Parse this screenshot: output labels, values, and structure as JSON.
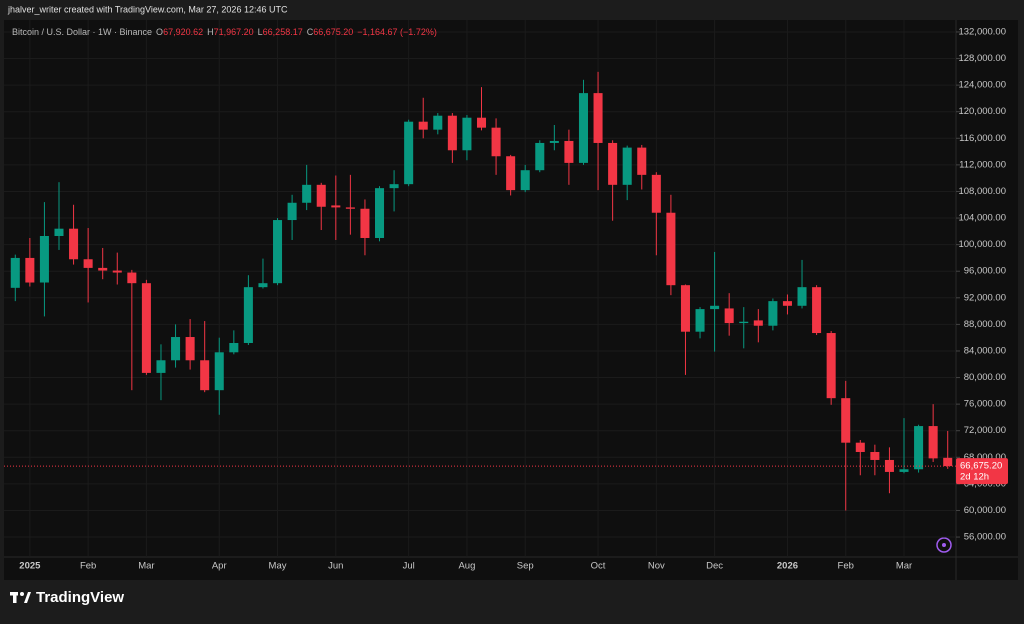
{
  "header": {
    "attribution": "jhalver_writer created with TradingView.com, Mar 27, 2026 12:46 UTC"
  },
  "footer": {
    "brand": "TradingView"
  },
  "chart_data": {
    "type": "candlestick",
    "title": "Bitcoin / U.S. Dollar · 1W · Binance",
    "ohlc_header": [
      {
        "key": "O",
        "text": "67,920.62"
      },
      {
        "key": "H",
        "text": "71,967.20"
      },
      {
        "key": "L",
        "text": "66,258.17"
      },
      {
        "key": "C",
        "text": "66,675.20"
      }
    ],
    "change": "−1,164.67 (−1.72%)",
    "last_price_label": "66,675.20",
    "countdown": "2d 12h",
    "up_color": "#089981",
    "down_color": "#f23645",
    "grid": true,
    "categories": [
      null,
      "2025",
      null,
      null,
      null,
      "Feb",
      null,
      null,
      null,
      "Mar",
      null,
      null,
      null,
      null,
      "Apr",
      null,
      null,
      null,
      "May",
      null,
      null,
      null,
      "Jun",
      null,
      null,
      null,
      null,
      "Jul",
      null,
      null,
      null,
      "Aug",
      null,
      null,
      null,
      "Sep",
      null,
      null,
      null,
      null,
      "Oct",
      null,
      null,
      null,
      "Nov",
      null,
      null,
      null,
      "Dec",
      null,
      null,
      null,
      null,
      "2026",
      null,
      null,
      null,
      "Feb",
      null,
      null,
      null,
      "Mar",
      null,
      null,
      null
    ],
    "open": [
      93500,
      98000,
      94300,
      101300,
      102400,
      97800,
      96500,
      96100,
      95800,
      94200,
      80700,
      82600,
      86100,
      82600,
      78100,
      83800,
      85200,
      93600,
      94200,
      103700,
      106300,
      109000,
      105900,
      105600,
      105400,
      101000,
      108500,
      109100,
      118500,
      117300,
      119400,
      114200,
      119100,
      117600,
      113300,
      108200,
      111200,
      115300,
      115600,
      112300,
      122800,
      115300,
      109000,
      114600,
      110500,
      104800,
      93900,
      86900,
      90300,
      90400,
      88200,
      88600,
      87800,
      91500,
      90800,
      93600,
      86700,
      76900,
      70200,
      68800,
      67600,
      65800,
      66200,
      72700,
      67920.62
    ],
    "high": [
      98500,
      101000,
      106400,
      109400,
      106000,
      102500,
      99500,
      98800,
      96200,
      94700,
      85000,
      88000,
      88800,
      88500,
      86000,
      87100,
      95400,
      97900,
      104000,
      107500,
      112000,
      109300,
      110400,
      110500,
      106800,
      108800,
      111200,
      118800,
      122100,
      119800,
      119800,
      119500,
      123700,
      119000,
      113500,
      112000,
      115700,
      118000,
      117300,
      124800,
      126000,
      115700,
      114900,
      115000,
      110900,
      107500,
      94000,
      90600,
      98900,
      92700,
      90600,
      90300,
      91900,
      92500,
      97700,
      93900,
      87000,
      79500,
      70600,
      69900,
      69500,
      73900,
      72900,
      76000,
      71967.2
    ],
    "low": [
      91500,
      93700,
      89200,
      99200,
      97000,
      91300,
      94800,
      94000,
      78100,
      80400,
      76600,
      81500,
      81200,
      77800,
      74400,
      83500,
      84900,
      93400,
      93900,
      100700,
      105200,
      102200,
      100700,
      101500,
      98400,
      100500,
      105000,
      108800,
      116000,
      116600,
      112300,
      112700,
      117200,
      110500,
      107400,
      107900,
      110900,
      114200,
      109000,
      112000,
      108200,
      103600,
      106700,
      108300,
      98400,
      92400,
      80400,
      85900,
      83900,
      86300,
      84400,
      85300,
      87100,
      89500,
      90400,
      86400,
      75900,
      60000,
      65300,
      65300,
      62600,
      65600,
      65700,
      67300,
      66258.17
    ],
    "close": [
      98000,
      94300,
      101300,
      102400,
      97800,
      96500,
      96100,
      95800,
      94200,
      80700,
      82600,
      86100,
      82600,
      78100,
      83800,
      85200,
      93600,
      94200,
      103700,
      106300,
      109000,
      105700,
      105600,
      105400,
      101000,
      108500,
      109100,
      118500,
      117300,
      119400,
      114200,
      119100,
      117600,
      113300,
      108200,
      111200,
      115300,
      115600,
      112300,
      122800,
      115300,
      109000,
      114600,
      110500,
      104800,
      93900,
      86900,
      90300,
      90800,
      88200,
      88400,
      87800,
      91500,
      90800,
      93600,
      86700,
      76900,
      70200,
      68800,
      67600,
      65800,
      66200,
      72700,
      67839.87,
      66675.2
    ],
    "ylim": [
      53300,
      133500
    ],
    "yticks": [
      {
        "value": 56000,
        "label": "56,000.00"
      },
      {
        "value": 60000,
        "label": "60,000.00"
      },
      {
        "value": 64000,
        "label": "64,000.00"
      },
      {
        "value": 68000,
        "label": "68,000.00"
      },
      {
        "value": 72000,
        "label": "72,000.00"
      },
      {
        "value": 76000,
        "label": "76,000.00"
      },
      {
        "value": 80000,
        "label": "80,000.00"
      },
      {
        "value": 84000,
        "label": "84,000.00"
      },
      {
        "value": 88000,
        "label": "88,000.00"
      },
      {
        "value": 92000,
        "label": "92,000.00"
      },
      {
        "value": 96000,
        "label": "96,000.00"
      },
      {
        "value": 100000,
        "label": "100,000.00"
      },
      {
        "value": 104000,
        "label": "104,000.00"
      },
      {
        "value": 108000,
        "label": "108,000.00"
      },
      {
        "value": 112000,
        "label": "112,000.00"
      },
      {
        "value": 116000,
        "label": "116,000.00"
      },
      {
        "value": 120000,
        "label": "120,000.00"
      },
      {
        "value": 124000,
        "label": "124,000.00"
      },
      {
        "value": 128000,
        "label": "128,000.00"
      },
      {
        "value": 132000,
        "label": "132,000.00"
      }
    ]
  }
}
